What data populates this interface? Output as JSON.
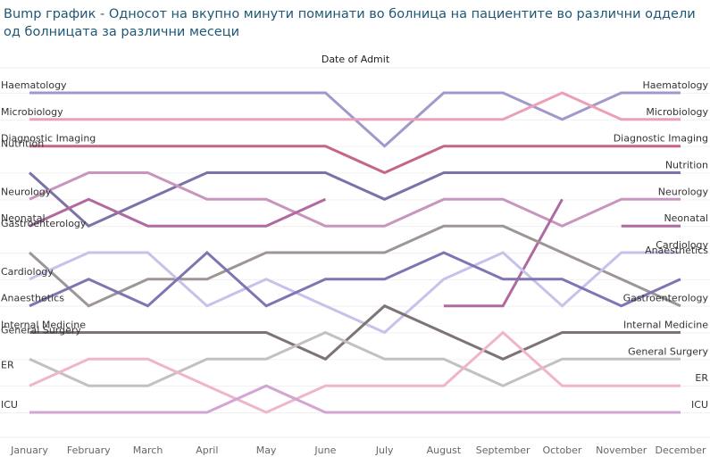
{
  "chart_data": {
    "type": "line",
    "title": "Bump график - Односот на вкупно минути поминати во болница на пациентите во различни оддели од болницата за различни месеци",
    "xlabel": "Date of Admit",
    "ylabel": "",
    "categories": [
      "January",
      "February",
      "March",
      "April",
      "May",
      "June",
      "July",
      "August",
      "September",
      "October",
      "November",
      "December"
    ],
    "ylim": [
      1,
      13
    ],
    "y_reversed": true,
    "grid": true,
    "series": [
      {
        "name": "Haematology",
        "color": "#a397cc",
        "values": [
          1,
          1,
          1,
          1,
          1,
          1,
          3,
          1,
          1,
          2,
          1,
          1
        ]
      },
      {
        "name": "Microbiology",
        "color": "#eca0b8",
        "values": [
          2,
          2,
          2,
          2,
          2,
          2,
          2,
          2,
          2,
          1,
          2,
          2
        ]
      },
      {
        "name": "Diagnostic Imaging",
        "color": "#c3668a",
        "values": [
          3,
          3,
          3,
          3,
          3,
          3,
          4,
          3,
          3,
          3,
          3,
          3
        ]
      },
      {
        "name": "Nutrition",
        "color": "#7b72a8",
        "values": [
          4,
          6,
          5,
          4,
          4,
          4,
          5,
          4,
          4,
          4,
          4,
          4
        ]
      },
      {
        "name": "Neurology",
        "color": "#c895be",
        "values": [
          5,
          4,
          4,
          5,
          5,
          6,
          6,
          5,
          5,
          6,
          5,
          5
        ]
      },
      {
        "name": "Neonatal",
        "color": "#b06aa0",
        "values": [
          6,
          5,
          6,
          6,
          6,
          5,
          null,
          null,
          null,
          null,
          6,
          6
        ]
      },
      {
        "name": "Neonatal",
        "color": "#b06aa0",
        "values": [
          null,
          null,
          null,
          null,
          null,
          null,
          null,
          9,
          9,
          5,
          null,
          null
        ]
      },
      {
        "name": "Gastroenterology",
        "color": "#9e9696",
        "values": [
          7,
          9,
          8,
          8,
          7,
          7,
          7,
          6,
          6,
          7,
          8,
          9
        ]
      },
      {
        "name": "Cardiology",
        "color": "#c8c1ea",
        "values": [
          8,
          7,
          7,
          9,
          8,
          9,
          10,
          8,
          7,
          9,
          7,
          7
        ]
      },
      {
        "name": "Anaesthetics",
        "color": "#8174b2",
        "values": [
          9,
          8,
          9,
          7,
          9,
          8,
          8,
          7,
          8,
          8,
          9,
          8
        ]
      },
      {
        "name": "Internal Medicine",
        "color": "#7e7474",
        "values": [
          10,
          10,
          10,
          10,
          10,
          11,
          9,
          10,
          11,
          10,
          10,
          10
        ]
      },
      {
        "name": "General Surgery",
        "color": "#c4c0c0",
        "values": [
          11,
          12,
          12,
          11,
          11,
          10,
          11,
          11,
          12,
          11,
          11,
          11
        ]
      },
      {
        "name": "ER",
        "color": "#f0b5cc",
        "values": [
          12,
          11,
          11,
          12,
          13,
          12,
          12,
          12,
          10,
          12,
          12,
          12
        ]
      },
      {
        "name": "ICU",
        "color": "#d2a5d2",
        "values": [
          13,
          13,
          13,
          13,
          12,
          13,
          13,
          13,
          13,
          13,
          13,
          13
        ]
      }
    ],
    "left_labels": [
      {
        "text": "Haematology",
        "rank": 1
      },
      {
        "text": "Microbiology",
        "rank": 2
      },
      {
        "text": "Diagnostic Imaging",
        "rank": 3
      },
      {
        "text": "Nutrition",
        "rank": 3.2
      },
      {
        "text": "Neurology",
        "rank": 5
      },
      {
        "text": "Neonatal",
        "rank": 6
      },
      {
        "text": "Gastroenterology",
        "rank": 6.2
      },
      {
        "text": "Cardiology",
        "rank": 8
      },
      {
        "text": "Anaesthetics",
        "rank": 9
      },
      {
        "text": "Internal Medicine",
        "rank": 10
      },
      {
        "text": "General Surgery",
        "rank": 10.2
      },
      {
        "text": "ER",
        "rank": 11.5
      },
      {
        "text": "ICU",
        "rank": 13
      }
    ],
    "right_labels": [
      {
        "text": "Haematology",
        "rank": 1
      },
      {
        "text": "Microbiology",
        "rank": 2
      },
      {
        "text": "Diagnostic Imaging",
        "rank": 3
      },
      {
        "text": "Nutrition",
        "rank": 4
      },
      {
        "text": "Neurology",
        "rank": 5
      },
      {
        "text": "Neonatal",
        "rank": 6
      },
      {
        "text": "Cardiology",
        "rank": 7
      },
      {
        "text": "Anaesthetics",
        "rank": 7.2
      },
      {
        "text": "Gastroenterology",
        "rank": 9
      },
      {
        "text": "Internal Medicine",
        "rank": 10
      },
      {
        "text": "General Surgery",
        "rank": 11
      },
      {
        "text": "ER",
        "rank": 12
      },
      {
        "text": "ICU",
        "rank": 13
      }
    ]
  }
}
